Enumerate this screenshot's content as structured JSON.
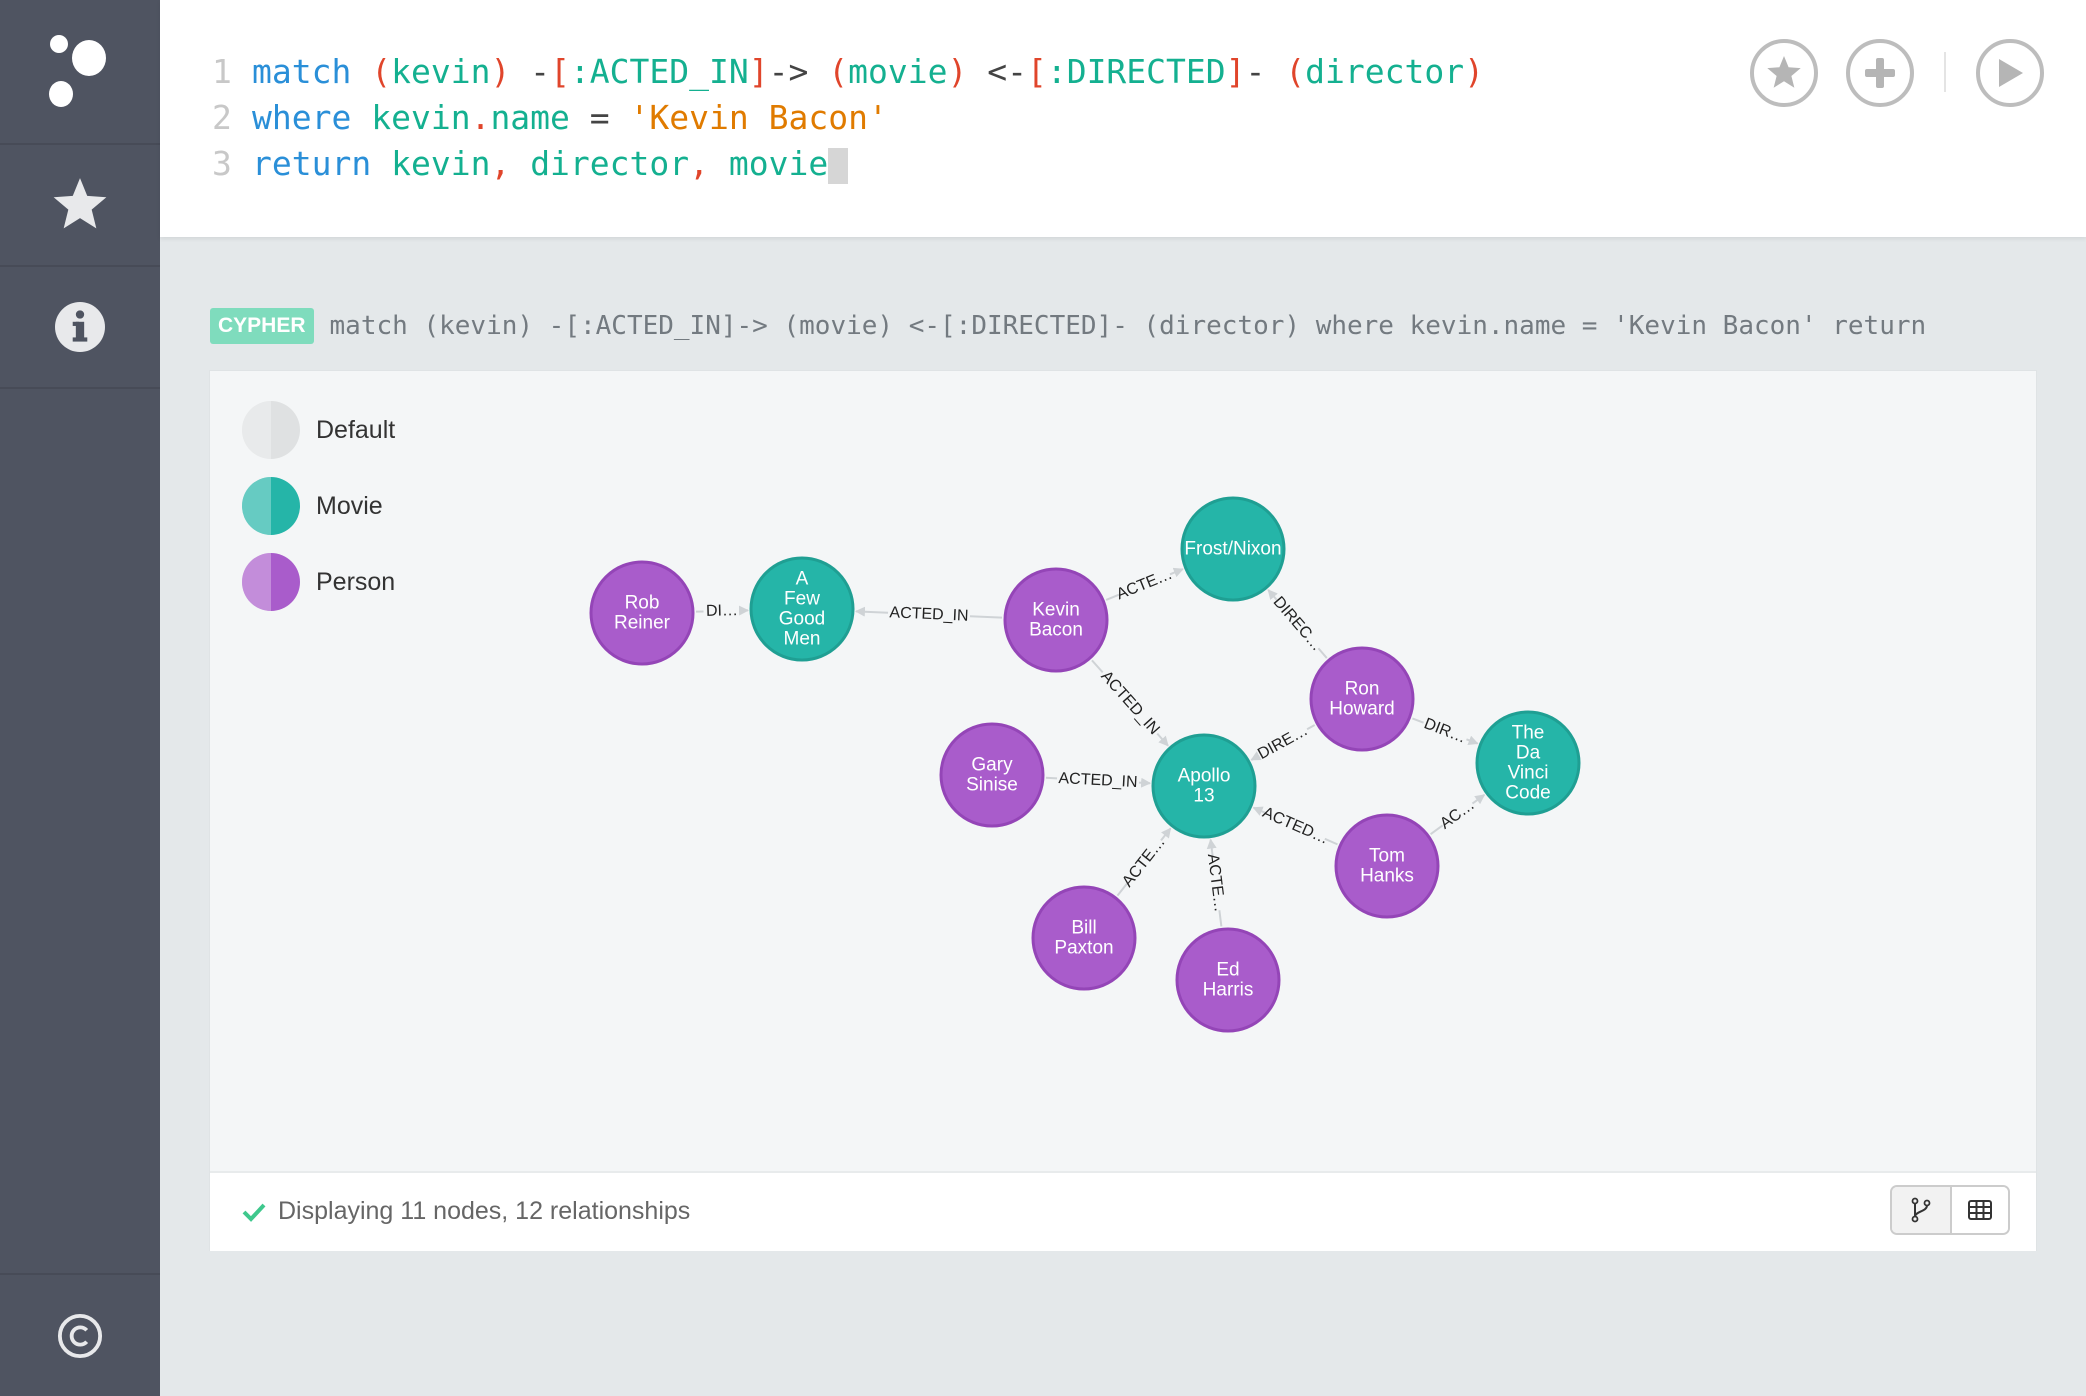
{
  "sidebar": {
    "items": [
      {
        "icon": "logo-icon"
      },
      {
        "icon": "star-icon"
      },
      {
        "icon": "info-icon"
      },
      {
        "icon": "copyright-icon"
      }
    ]
  },
  "editor": {
    "lines": [
      {
        "num": "1",
        "tokens": [
          [
            "match",
            "kw"
          ],
          [
            " ",
            "op"
          ],
          [
            "(",
            "p"
          ],
          [
            "kevin",
            "id"
          ],
          [
            ")",
            "p"
          ],
          [
            " -",
            "op"
          ],
          [
            "[",
            "p"
          ],
          [
            ":ACTED_IN",
            "id"
          ],
          [
            "]",
            "p"
          ],
          [
            "->",
            "op"
          ],
          [
            " ",
            "op"
          ],
          [
            "(",
            "p"
          ],
          [
            "movie",
            "id"
          ],
          [
            ")",
            "p"
          ],
          [
            " <-",
            "op"
          ],
          [
            "[",
            "p"
          ],
          [
            ":DIRECTED",
            "id"
          ],
          [
            "]",
            "p"
          ],
          [
            "-",
            "op"
          ],
          [
            " ",
            "op"
          ],
          [
            "(",
            "p"
          ],
          [
            "director",
            "id"
          ],
          [
            ")",
            "p"
          ]
        ]
      },
      {
        "num": "2",
        "tokens": [
          [
            "where",
            "kw"
          ],
          [
            " ",
            "op"
          ],
          [
            "kevin",
            "id"
          ],
          [
            ".",
            "p"
          ],
          [
            "name",
            "id"
          ],
          [
            " = ",
            "op"
          ],
          [
            "'Kevin Bacon'",
            "str"
          ]
        ]
      },
      {
        "num": "3",
        "tokens": [
          [
            "return",
            "kw"
          ],
          [
            " ",
            "op"
          ],
          [
            "kevin",
            "id"
          ],
          [
            ",",
            "p"
          ],
          [
            " ",
            "op"
          ],
          [
            "director",
            "id"
          ],
          [
            ",",
            "p"
          ],
          [
            " ",
            "op"
          ],
          [
            "movie",
            "id"
          ]
        ]
      }
    ],
    "buttons": [
      "favorite",
      "add",
      "run"
    ]
  },
  "query": {
    "badge": "CYPHER",
    "text": "match (kevin) -[:ACTED_IN]-> (movie) <-[:DIRECTED]- (director) where kevin.name = 'Kevin Bacon' return"
  },
  "legend": [
    {
      "label": "Default",
      "color": "#dfe1e2"
    },
    {
      "label": "Movie",
      "color": "#25b5a8"
    },
    {
      "label": "Person",
      "color": "#a95ccb"
    }
  ],
  "graph": {
    "colors": {
      "Movie": "#25b5a8",
      "MovieStroke": "#1f9f93",
      "Person": "#a95ccb",
      "PersonStroke": "#9445b7",
      "edge": "#cfd3d6"
    },
    "nodes": [
      {
        "id": "rob",
        "label": [
          "Rob",
          "Reiner"
        ],
        "type": "Person"
      },
      {
        "id": "afgm",
        "label": [
          "A",
          "Few",
          "Good",
          "Men"
        ],
        "type": "Movie"
      },
      {
        "id": "kevin",
        "label": [
          "Kevin",
          "Bacon"
        ],
        "type": "Person"
      },
      {
        "id": "frost",
        "label": [
          "Frost/Nixon"
        ],
        "type": "Movie"
      },
      {
        "id": "ron",
        "label": [
          "Ron",
          "Howard"
        ],
        "type": "Person"
      },
      {
        "id": "davinci",
        "label": [
          "The",
          "Da",
          "Vinci",
          "Code"
        ],
        "type": "Movie"
      },
      {
        "id": "gary",
        "label": [
          "Gary",
          "Sinise"
        ],
        "type": "Person"
      },
      {
        "id": "apollo",
        "label": [
          "Apollo",
          "13"
        ],
        "type": "Movie"
      },
      {
        "id": "tom",
        "label": [
          "Tom",
          "Hanks"
        ],
        "type": "Person"
      },
      {
        "id": "bill",
        "label": [
          "Bill",
          "Paxton"
        ],
        "type": "Person"
      },
      {
        "id": "ed",
        "label": [
          "Ed",
          "Harris"
        ],
        "type": "Person"
      }
    ],
    "edges": [
      {
        "from": "rob",
        "to": "afgm",
        "label": "DI…"
      },
      {
        "from": "kevin",
        "to": "afgm",
        "label": "ACTED_IN"
      },
      {
        "from": "kevin",
        "to": "frost",
        "label": "ACTE…"
      },
      {
        "from": "kevin",
        "to": "apollo",
        "label": "ACTED_IN"
      },
      {
        "from": "ron",
        "to": "frost",
        "label": "DIREC…"
      },
      {
        "from": "ron",
        "to": "apollo",
        "label": "DIRE…"
      },
      {
        "from": "ron",
        "to": "davinci",
        "label": "DIR…"
      },
      {
        "from": "gary",
        "to": "apollo",
        "label": "ACTED_IN"
      },
      {
        "from": "tom",
        "to": "apollo",
        "label": "ACTED…"
      },
      {
        "from": "tom",
        "to": "davinci",
        "label": "AC…"
      },
      {
        "from": "bill",
        "to": "apollo",
        "label": "ACTE…"
      },
      {
        "from": "ed",
        "to": "apollo",
        "label": "ACTE…"
      }
    ]
  },
  "footer": {
    "status": "Displaying 11 nodes, 12 relationships",
    "views": [
      "graph-view",
      "table-view"
    ],
    "active_view": "graph-view"
  }
}
